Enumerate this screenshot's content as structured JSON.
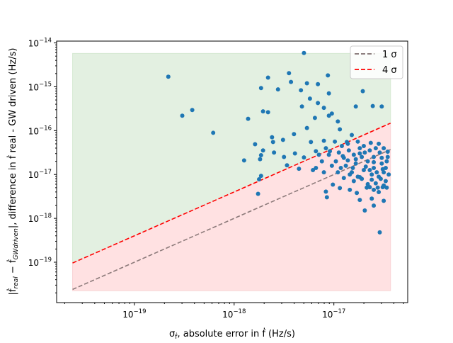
{
  "chart_data": {
    "type": "scatter",
    "xscale": "log",
    "yscale": "log",
    "xlim": [
      1.66e-20,
      5.5e-17
    ],
    "ylim": [
      1.2e-20,
      1.1e-14
    ],
    "xlabel": {
      "sigma": "σ",
      "sub": "ḟ",
      "rest": ", absolute error in ḟ (Hz/s)"
    },
    "ylabel": {
      "open": "|ḟ",
      "sub1": "real",
      "mid": " − ḟ",
      "sub2": "GWdriven",
      "rest": "|, difference in ḟ real - GW driven (Hz/s)"
    },
    "x_ticks": [
      {
        "base": "10",
        "exp": "−19",
        "log": -19
      },
      {
        "base": "10",
        "exp": "−18",
        "log": -18
      },
      {
        "base": "10",
        "exp": "−17",
        "log": -17
      }
    ],
    "y_ticks": [
      {
        "base": "10",
        "exp": "−14",
        "log": -14
      },
      {
        "base": "10",
        "exp": "−15",
        "log": -15
      },
      {
        "base": "10",
        "exp": "−16",
        "log": -16
      },
      {
        "base": "10",
        "exp": "−17",
        "log": -17
      },
      {
        "base": "10",
        "exp": "−18",
        "log": -18
      },
      {
        "base": "10",
        "exp": "−19",
        "log": -19
      }
    ],
    "legend": {
      "placement": "top-right",
      "entries": [
        {
          "label": "1 σ",
          "color": "#7f6f6f",
          "style": "dashed",
          "factor": 1
        },
        {
          "label": "4 σ",
          "color": "#ff0000",
          "style": "dashed",
          "factor": 4
        }
      ]
    },
    "regions": {
      "x_range": [
        2.4e-20,
        3.7e-17
      ],
      "green_top": 5.75e-15,
      "red_bottom": 2.25e-20,
      "green_color": "#e3f0e1",
      "red_color": "#ffe1e2"
    },
    "point_color": "#1f77b4",
    "points_log10": [
      [
        -18.21,
        -16.05
      ],
      [
        -17.3,
        -14.23
      ],
      [
        -17.66,
        -14.79
      ],
      [
        -17.45,
        -14.69
      ],
      [
        -17.06,
        -14.74
      ],
      [
        -17.16,
        -14.94
      ],
      [
        -17.66,
        -15.58
      ],
      [
        -17.56,
        -15.06
      ],
      [
        -17.33,
        -15.08
      ],
      [
        -17.27,
        -14.92
      ],
      [
        -17.43,
        -14.89
      ],
      [
        -17.73,
        -15.03
      ],
      [
        -17.86,
        -15.73
      ],
      [
        -17.71,
        -15.56
      ],
      [
        -17.9,
        -16.68
      ],
      [
        -17.61,
        -16.26
      ],
      [
        -17.79,
        -16.31
      ],
      [
        -17.73,
        -16.56
      ],
      [
        -17.4,
        -16.08
      ],
      [
        -17.32,
        -15.45
      ],
      [
        -17.24,
        -15.27
      ],
      [
        -17.05,
        -15.15
      ],
      [
        -17.16,
        -15.37
      ],
      [
        -17.05,
        -15.66
      ],
      [
        -16.96,
        -15.79
      ],
      [
        -16.71,
        -15.1
      ],
      [
        -16.61,
        -15.44
      ],
      [
        -16.78,
        -15.45
      ],
      [
        -16.82,
        -16.1
      ],
      [
        -16.52,
        -15.45
      ],
      [
        -17.73,
        -17.03
      ],
      [
        -17.5,
        -16.6
      ],
      [
        -17.62,
        -16.15
      ],
      [
        -17.27,
        -15.94
      ],
      [
        -17.19,
        -15.71
      ],
      [
        -17.51,
        -16.21
      ],
      [
        -17.39,
        -16.52
      ],
      [
        -17.47,
        -16.79
      ],
      [
        -17.1,
        -15.48
      ],
      [
        -16.94,
        -15.97
      ],
      [
        -16.87,
        -16.26
      ],
      [
        -17.23,
        -16.26
      ],
      [
        -17.1,
        -16.23
      ],
      [
        -17.04,
        -16.47
      ],
      [
        -17.02,
        -15.61
      ],
      [
        -16.91,
        -16.58
      ],
      [
        -17.71,
        -16.45
      ],
      [
        -17.6,
        -16.5
      ],
      [
        -17.3,
        -16.61
      ],
      [
        -17.18,
        -16.47
      ],
      [
        -17.76,
        -17.44
      ],
      [
        -17.21,
        -16.9
      ],
      [
        -17.35,
        -16.87
      ],
      [
        -18.66,
        -14.77
      ],
      [
        -18.52,
        -15.66
      ],
      [
        -18.42,
        -15.53
      ],
      [
        -17.75,
        -17.11
      ],
      [
        -17.74,
        -16.65
      ],
      [
        -16.54,
        -18.32
      ],
      [
        -16.6,
        -17.71
      ],
      [
        -16.69,
        -17.82
      ],
      [
        -16.62,
        -17.55
      ],
      [
        -16.74,
        -17.58
      ],
      [
        -16.77,
        -17.42
      ],
      [
        -16.64,
        -17.29
      ],
      [
        -16.5,
        -17.6
      ],
      [
        -17.08,
        -17.39
      ],
      [
        -17.07,
        -17.52
      ],
      [
        -17.01,
        -17.23
      ],
      [
        -16.84,
        -17.35
      ],
      [
        -16.94,
        -17.31
      ],
      [
        -16.74,
        -17.06
      ],
      [
        -16.51,
        -17.29
      ],
      [
        -16.5,
        -16.95
      ],
      [
        -16.55,
        -17.05
      ],
      [
        -16.48,
        -17.15
      ],
      [
        -16.6,
        -16.85
      ],
      [
        -16.52,
        -16.75
      ],
      [
        -16.58,
        -17.2
      ],
      [
        -16.46,
        -16.6
      ],
      [
        -16.62,
        -17.0
      ],
      [
        -16.66,
        -16.7
      ],
      [
        -16.7,
        -16.9
      ],
      [
        -16.54,
        -16.5
      ],
      [
        -16.64,
        -16.45
      ],
      [
        -16.72,
        -16.6
      ],
      [
        -16.78,
        -16.75
      ],
      [
        -16.8,
        -16.55
      ],
      [
        -16.74,
        -16.4
      ],
      [
        -16.85,
        -16.45
      ],
      [
        -16.9,
        -16.62
      ],
      [
        -16.56,
        -17.3
      ],
      [
        -16.48,
        -16.85
      ],
      [
        -16.45,
        -17.0
      ],
      [
        -16.5,
        -17.25
      ],
      [
        -16.6,
        -16.6
      ],
      [
        -16.68,
        -16.82
      ],
      [
        -16.76,
        -17.05
      ],
      [
        -16.82,
        -16.95
      ],
      [
        -16.88,
        -16.8
      ],
      [
        -16.95,
        -16.5
      ],
      [
        -16.98,
        -16.7
      ],
      [
        -16.92,
        -16.35
      ],
      [
        -16.86,
        -16.3
      ],
      [
        -16.7,
        -16.35
      ],
      [
        -16.58,
        -16.4
      ],
      [
        -16.5,
        -16.4
      ],
      [
        -16.47,
        -16.7
      ],
      [
        -16.53,
        -17.1
      ],
      [
        -16.62,
        -17.12
      ],
      [
        -16.66,
        -17.22
      ],
      [
        -16.72,
        -17.1
      ],
      [
        -16.8,
        -17.15
      ],
      [
        -16.84,
        -17.0
      ],
      [
        -16.96,
        -16.95
      ],
      [
        -17.02,
        -16.8
      ],
      [
        -17.05,
        -16.55
      ],
      [
        -17.08,
        -16.4
      ],
      [
        -16.99,
        -16.25
      ],
      [
        -16.76,
        -16.25
      ],
      [
        -16.63,
        -16.28
      ],
      [
        -16.55,
        -16.3
      ],
      [
        -16.46,
        -16.48
      ],
      [
        -16.52,
        -16.62
      ],
      [
        -16.57,
        -16.95
      ],
      [
        -16.64,
        -16.9
      ],
      [
        -16.69,
        -16.5
      ],
      [
        -16.81,
        -16.85
      ],
      [
        -16.9,
        -17.08
      ],
      [
        -16.78,
        -16.65
      ],
      [
        -16.6,
        -16.72
      ],
      [
        -16.51,
        -16.88
      ],
      [
        -16.47,
        -17.3
      ],
      [
        -16.55,
        -17.4
      ],
      [
        -16.6,
        -17.35
      ],
      [
        -17.12,
        -16.7
      ],
      [
        -17.15,
        -16.55
      ],
      [
        -17.18,
        -16.85
      ],
      [
        -17.1,
        -16.95
      ],
      [
        -16.74,
        -16.52
      ],
      [
        -16.67,
        -17.3
      ],
      [
        -16.86,
        -16.68
      ],
      [
        -16.93,
        -16.85
      ]
    ]
  }
}
